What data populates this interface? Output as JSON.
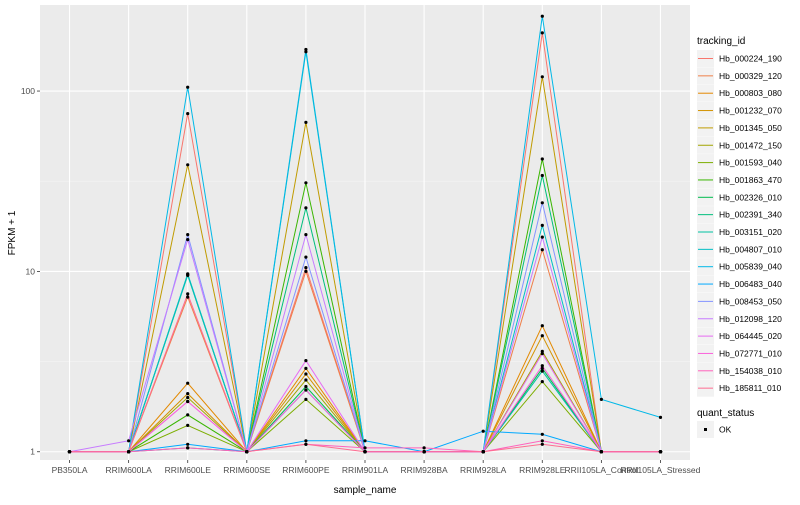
{
  "chart_data": {
    "type": "line",
    "title": "",
    "xlabel": "sample_name",
    "ylabel": "FPKM + 1",
    "y_scale": "log10",
    "ylim": [
      0.9,
      300
    ],
    "y_ticks": [
      1,
      10,
      100
    ],
    "y_tick_labels": [
      "1",
      "10",
      "100"
    ],
    "grid": true,
    "legend_position": "right",
    "categories": [
      "PB350LA",
      "RRIM600LA",
      "RRIM600LE",
      "RRIM600SE",
      "RRIM600PE",
      "RRIM901LA",
      "RRIM928BA",
      "RRIM928LA",
      "RRIM928LE",
      "RRII105LA_Control",
      "RRII105LA_Stressed"
    ],
    "legend_title": "tracking_id",
    "series": [
      {
        "name": "Hb_000224_190",
        "color": "#F8766D",
        "values": [
          1.0,
          1.0,
          75.0,
          1.0,
          10.5,
          1.0,
          1.0,
          1.0,
          210.0,
          1.0,
          1.0
        ]
      },
      {
        "name": "Hb_000329_120",
        "color": "#EF7F49",
        "values": [
          1.0,
          1.0,
          7.2,
          1.0,
          10.0,
          1.0,
          1.0,
          1.0,
          13.2,
          1.0,
          1.0
        ]
      },
      {
        "name": "Hb_000803_080",
        "color": "#E38900",
        "values": [
          1.0,
          1.0,
          2.4,
          1.0,
          2.9,
          1.0,
          1.0,
          1.0,
          5.0,
          1.0,
          1.0
        ]
      },
      {
        "name": "Hb_001232_070",
        "color": "#D39200",
        "values": [
          1.0,
          1.0,
          2.1,
          1.0,
          2.7,
          1.0,
          1.0,
          1.0,
          4.4,
          1.0,
          1.0
        ]
      },
      {
        "name": "Hb_001345_050",
        "color": "#C09B00",
        "values": [
          1.0,
          1.0,
          39.0,
          1.0,
          67.0,
          1.0,
          1.0,
          1.0,
          120.0,
          1.0,
          1.0
        ]
      },
      {
        "name": "Hb_001472_150",
        "color": "#A3A500",
        "values": [
          1.0,
          1.0,
          2.0,
          1.0,
          2.5,
          1.0,
          1.0,
          1.0,
          3.6,
          1.0,
          1.0
        ]
      },
      {
        "name": "Hb_001593_040",
        "color": "#7CAE00",
        "values": [
          1.0,
          1.0,
          1.4,
          1.0,
          1.95,
          1.0,
          1.0,
          1.0,
          2.45,
          1.0,
          1.0
        ]
      },
      {
        "name": "Hb_001863_470",
        "color": "#39B600",
        "values": [
          1.0,
          1.0,
          1.6,
          1.0,
          31.0,
          1.0,
          1.0,
          1.0,
          42.0,
          1.0,
          1.0
        ]
      },
      {
        "name": "Hb_002326_010",
        "color": "#00BB4E",
        "values": [
          1.0,
          1.0,
          9.6,
          1.0,
          2.3,
          1.0,
          1.0,
          1.0,
          2.9,
          1.0,
          1.0
        ]
      },
      {
        "name": "Hb_002391_340",
        "color": "#00BF7D",
        "values": [
          1.0,
          1.0,
          1.05,
          1.0,
          22.5,
          1.0,
          1.0,
          1.0,
          34.0,
          1.0,
          1.0
        ]
      },
      {
        "name": "Hb_003151_020",
        "color": "#00C1A3",
        "values": [
          1.0,
          1.0,
          9.5,
          1.0,
          2.2,
          1.0,
          1.0,
          1.0,
          2.8,
          1.0,
          1.0
        ]
      },
      {
        "name": "Hb_004807_010",
        "color": "#00BFC4",
        "values": [
          1.0,
          1.0,
          9.7,
          1.0,
          165.0,
          1.0,
          1.0,
          1.0,
          18.0,
          1.0,
          1.0
        ]
      },
      {
        "name": "Hb_005839_040",
        "color": "#00B8E7",
        "values": [
          1.0,
          1.0,
          105.0,
          1.0,
          170.0,
          1.0,
          1.0,
          1.0,
          260.0,
          1.95,
          1.55
        ]
      },
      {
        "name": "Hb_006483_040",
        "color": "#00A9FF",
        "values": [
          1.0,
          1.0,
          1.1,
          1.0,
          1.15,
          1.15,
          1.0,
          1.3,
          1.25,
          1.0,
          1.0
        ]
      },
      {
        "name": "Hb_008453_050",
        "color": "#8494FF",
        "values": [
          1.0,
          1.0,
          16.0,
          1.0,
          12.0,
          1.0,
          1.0,
          1.0,
          24.0,
          1.0,
          1.0
        ]
      },
      {
        "name": "Hb_012098_120",
        "color": "#C77CFF",
        "values": [
          1.0,
          1.15,
          15.0,
          1.0,
          16.0,
          1.0,
          1.0,
          1.0,
          15.5,
          1.0,
          1.0
        ]
      },
      {
        "name": "Hb_064445_020",
        "color": "#E76BF3",
        "values": [
          1.0,
          1.0,
          1.9,
          1.0,
          3.2,
          1.0,
          1.0,
          1.0,
          3.5,
          1.0,
          1.0
        ]
      },
      {
        "name": "Hb_072771_010",
        "color": "#FA62DB",
        "values": [
          1.0,
          1.0,
          1.9,
          1.0,
          2.2,
          1.0,
          1.0,
          1.0,
          3.0,
          1.0,
          1.0
        ]
      },
      {
        "name": "Hb_154038_010",
        "color": "#FF62BC",
        "values": [
          1.0,
          1.0,
          1.05,
          1.0,
          1.1,
          1.05,
          1.05,
          1.0,
          1.15,
          1.0,
          1.0
        ]
      },
      {
        "name": "Hb_185811_010",
        "color": "#FF6C91",
        "values": [
          1.0,
          1.0,
          7.5,
          1.0,
          1.1,
          1.0,
          1.0,
          1.0,
          1.1,
          1.0,
          1.0
        ]
      }
    ],
    "legend2_title": "quant_status",
    "legend2_items": [
      "OK"
    ]
  }
}
